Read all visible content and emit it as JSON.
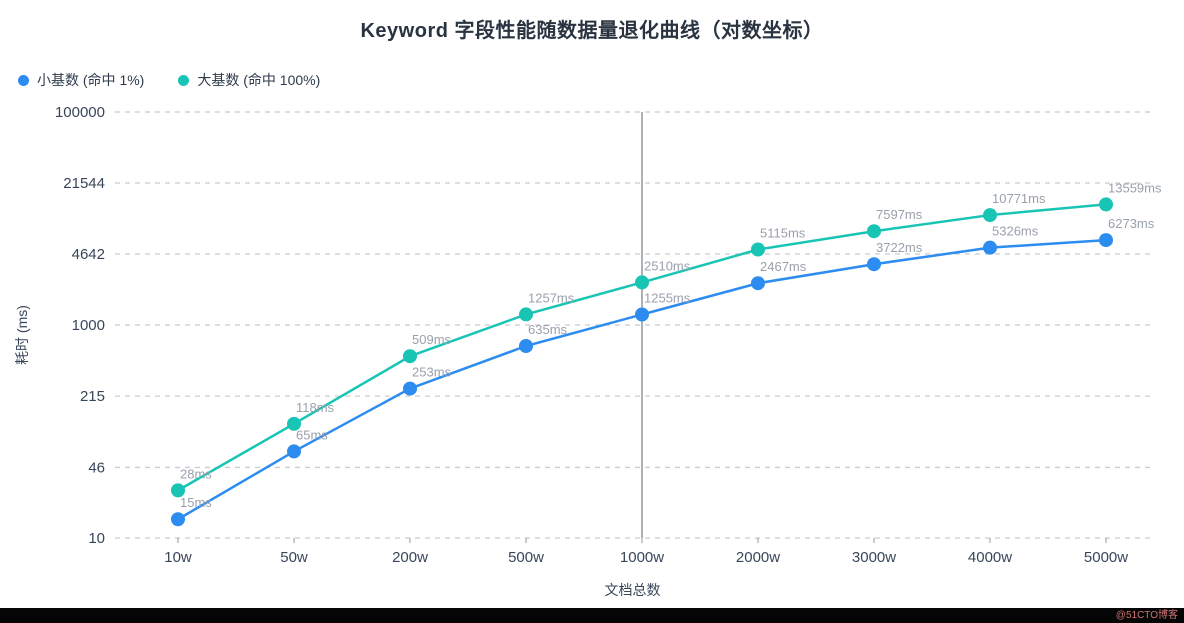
{
  "title": "Keyword 字段性能随数据量退化曲线（对数坐标）",
  "legend": [
    {
      "label": "小基数 (命中 1%)",
      "color": "#2d8cf0"
    },
    {
      "label": "大基数 (命中 100%)",
      "color": "#18c5b4"
    }
  ],
  "watermark": "@51CTO博客",
  "chart_data": {
    "type": "line",
    "title": "Keyword 字段性能随数据量退化曲线（对数坐标）",
    "xlabel": "文档总数",
    "ylabel": "耗时 (ms)",
    "x_categories": [
      "10w",
      "50w",
      "200w",
      "500w",
      "1000w",
      "2000w",
      "3000w",
      "4000w",
      "5000w"
    ],
    "y_scale": "log",
    "ylim": [
      10,
      100000
    ],
    "y_ticks": [
      10,
      46,
      215,
      1000,
      4642,
      21544,
      100000
    ],
    "grid": "dashed-horizontal",
    "legend_position": "top-left",
    "vline_at_category": "1000w",
    "label_suffix": "ms",
    "series": [
      {
        "name": "小基数 (命中 1%)",
        "color": "#2d8cf0",
        "values": [
          15,
          65,
          253,
          635,
          1255,
          2467,
          3722,
          5326,
          6273
        ]
      },
      {
        "name": "大基数 (命中 100%)",
        "color": "#18c5b4",
        "values": [
          28,
          118,
          509,
          1257,
          2510,
          5115,
          7597,
          10771,
          13559
        ]
      }
    ],
    "colors": {
      "grid": "#c8cbd0",
      "vline": "#9097a0",
      "tick_text": "#39465a",
      "value_label_text": "#9aa1ab"
    }
  }
}
